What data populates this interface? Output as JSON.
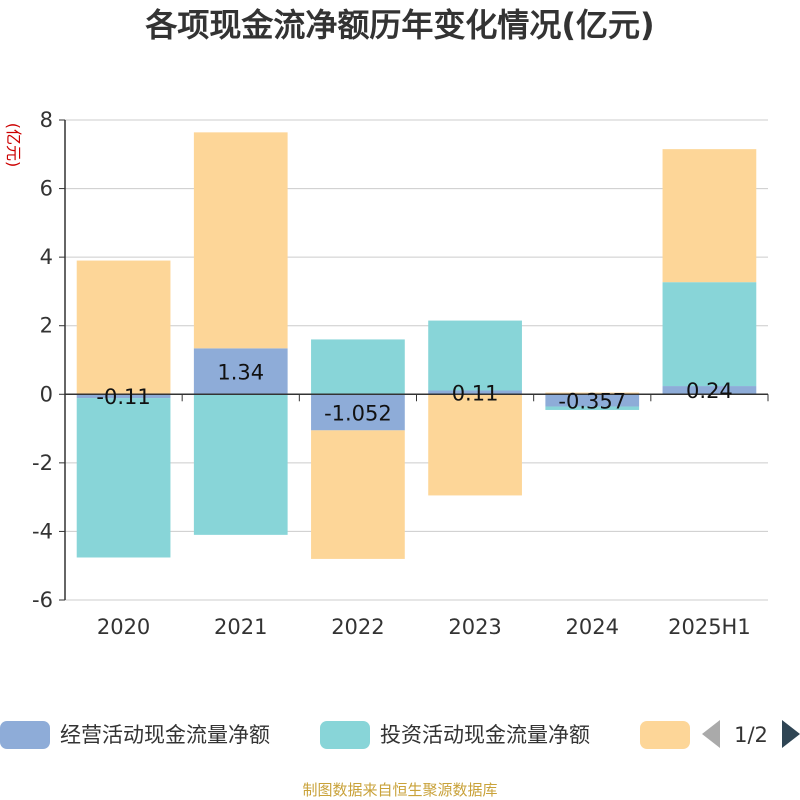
{
  "title": "各项现金流净额历年变化情况(亿元)",
  "source": "制图数据来自恒生聚源数据库",
  "legend": {
    "page": "1/2",
    "prev_icon": "triangle-left-icon",
    "next_icon": "triangle-right-icon"
  },
  "chart_data": {
    "type": "bar",
    "stacked": true,
    "ylabel": "(亿元)",
    "ylim": [
      -6,
      8
    ],
    "yticks": [
      8,
      6,
      4,
      2,
      0,
      -2,
      -4,
      -6
    ],
    "grid": true,
    "categories": [
      "2020",
      "2021",
      "2022",
      "2023",
      "2024",
      "2025H1"
    ],
    "series": [
      {
        "name": "经营活动现金流量净额",
        "color": "#8eacd8",
        "values": [
          -0.11,
          1.34,
          -1.052,
          0.11,
          -0.357,
          0.24
        ],
        "labels": [
          "-0.11",
          "1.34",
          "-1.052",
          "0.11",
          "-0.357",
          "0.24"
        ]
      },
      {
        "name": "投资活动现金流量净额",
        "color": "#88d5d8",
        "values": [
          -4.65,
          -4.1,
          1.6,
          2.04,
          -0.1,
          3.03
        ],
        "labels": []
      },
      {
        "name": "",
        "color": "#fdd698",
        "values": [
          3.9,
          6.3,
          -3.75,
          -2.95,
          0.05,
          3.88
        ],
        "labels": []
      }
    ]
  }
}
